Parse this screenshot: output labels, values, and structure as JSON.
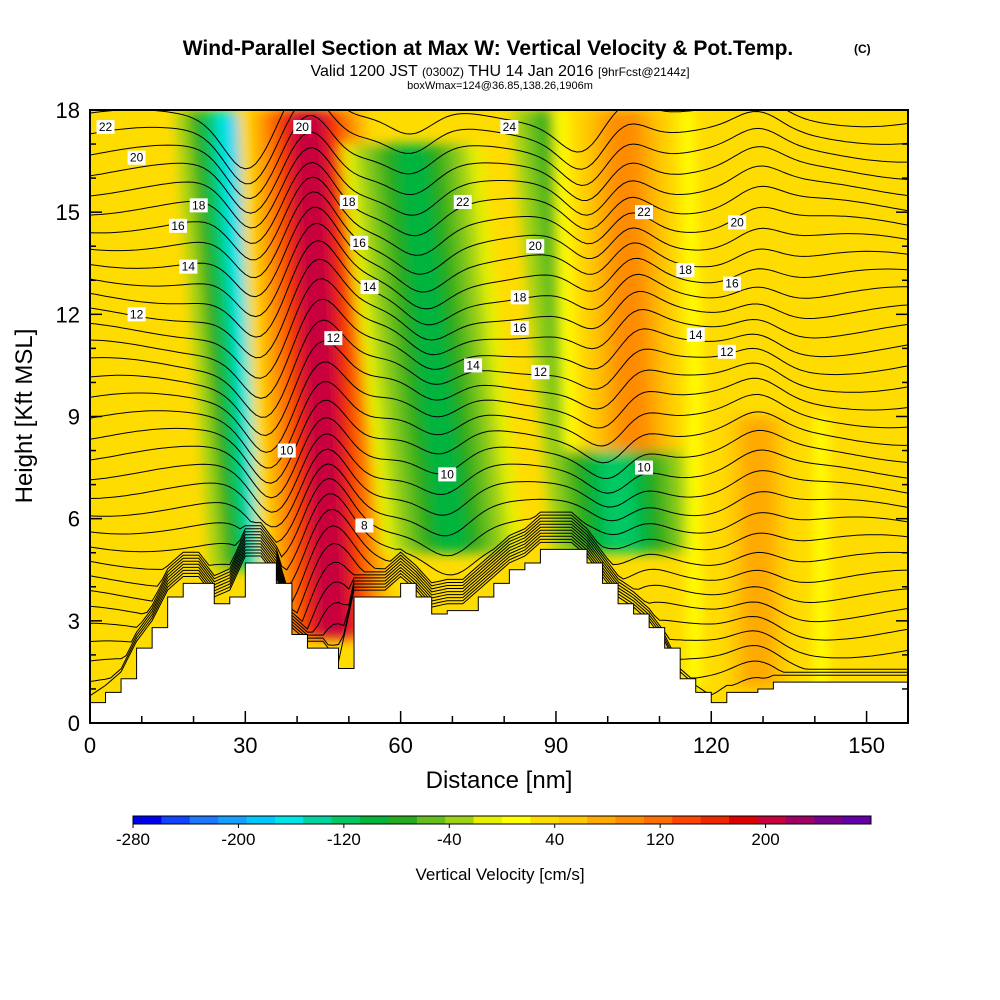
{
  "header": {
    "title": "Wind-Parallel Section at Max W: Vertical Velocity & Pot.Temp.",
    "copyright": "(C)",
    "valid_prefix": "Valid 1200 JST",
    "valid_utc": "(0300Z)",
    "valid_date": "THU 14 Jan 2016",
    "forecast": "[9hrFcst@2144z]",
    "box_info": "boxWmax=124@36.85,138.26,1906m"
  },
  "chart_data": {
    "type": "heatmap",
    "xlabel": "Distance [nm]",
    "ylabel": "Height [Kft MSL]",
    "xlim": [
      0,
      158
    ],
    "ylim": [
      0,
      18
    ],
    "x_ticks": [
      0,
      30,
      60,
      90,
      120,
      150
    ],
    "y_ticks": [
      0,
      3,
      6,
      9,
      12,
      15,
      18
    ],
    "colorbar": {
      "label": "Vertical Velocity [cm/s]",
      "tick_labels": [
        "-280",
        "-200",
        "-120",
        "-40",
        "40",
        "120",
        "200"
      ],
      "tick_values": [
        -280,
        -200,
        -120,
        -40,
        40,
        120,
        200
      ],
      "range": [
        -280,
        280
      ],
      "colors": [
        "#0000ee",
        "#1144ff",
        "#1e78ff",
        "#14a0ff",
        "#00c8ff",
        "#00e6e6",
        "#00d2a0",
        "#00c864",
        "#00b43c",
        "#28aa1e",
        "#64be1e",
        "#a0d214",
        "#e6f000",
        "#ffff00",
        "#ffdc00",
        "#ffc800",
        "#ffaa00",
        "#ff8c00",
        "#ff6e00",
        "#ff4600",
        "#f02800",
        "#dc0000",
        "#c8003c",
        "#a00064",
        "#78008c",
        "#6400aa"
      ]
    },
    "vertical_velocity_features": [
      {
        "kind": "downdraft",
        "x_base": 37,
        "x_top": 30,
        "peak": -190,
        "y_bottom": 4.5,
        "y_top": 18
      },
      {
        "kind": "updraft",
        "x_base": 47,
        "x_top": 42,
        "peak": 210,
        "y_bottom": 2.5,
        "y_top": 18
      },
      {
        "kind": "downdraft",
        "x_base": 70,
        "x_top": 62,
        "peak": -100,
        "y_bottom": 5,
        "y_top": 17
      },
      {
        "kind": "downdraft",
        "x_base": 103,
        "x_top": 95,
        "peak": -120,
        "y_bottom": 5,
        "y_top": 18
      },
      {
        "kind": "updraft",
        "x_base": 105,
        "x_top": 103,
        "peak": 90,
        "y_bottom": 8,
        "y_top": 18
      },
      {
        "kind": "updraft",
        "x_base": 129,
        "x_top": 129,
        "peak": 70,
        "y_bottom": 1,
        "y_top": 9
      }
    ],
    "terrain_height_kft": [
      [
        0,
        0.6
      ],
      [
        3,
        0.9
      ],
      [
        6,
        1.3
      ],
      [
        9,
        2.2
      ],
      [
        12,
        2.8
      ],
      [
        15,
        3.7
      ],
      [
        18,
        4.1
      ],
      [
        21,
        4.1
      ],
      [
        24,
        3.5
      ],
      [
        27,
        3.7
      ],
      [
        30,
        4.7
      ],
      [
        33,
        4.7
      ],
      [
        36,
        4.1
      ],
      [
        39,
        2.6
      ],
      [
        42,
        2.2
      ],
      [
        45,
        2.2
      ],
      [
        48,
        1.6
      ],
      [
        51,
        3.7
      ],
      [
        54,
        3.7
      ],
      [
        57,
        3.7
      ],
      [
        60,
        4.1
      ],
      [
        63,
        3.7
      ],
      [
        66,
        3.2
      ],
      [
        69,
        3.3
      ],
      [
        72,
        3.3
      ],
      [
        75,
        3.7
      ],
      [
        78,
        4.1
      ],
      [
        81,
        4.5
      ],
      [
        84,
        4.7
      ],
      [
        87,
        5.1
      ],
      [
        90,
        5.1
      ],
      [
        93,
        5.1
      ],
      [
        96,
        4.7
      ],
      [
        99,
        4.1
      ],
      [
        102,
        3.5
      ],
      [
        105,
        3.2
      ],
      [
        108,
        2.8
      ],
      [
        111,
        2.2
      ],
      [
        114,
        1.3
      ],
      [
        117,
        0.9
      ],
      [
        120,
        0.6
      ],
      [
        123,
        0.9
      ],
      [
        126,
        0.9
      ],
      [
        129,
        1.0
      ],
      [
        132,
        1.2
      ],
      [
        135,
        1.2
      ],
      [
        138,
        1.2
      ],
      [
        141,
        1.2
      ],
      [
        144,
        1.2
      ],
      [
        147,
        1.2
      ],
      [
        150,
        1.2
      ],
      [
        153,
        1.2
      ],
      [
        156,
        1.2
      ],
      [
        158,
        1.2
      ]
    ],
    "theta_contour_labels": [
      {
        "text": "22",
        "x": 3,
        "y": 17.5
      },
      {
        "text": "20",
        "x": 9,
        "y": 16.6
      },
      {
        "text": "18",
        "x": 21,
        "y": 15.2
      },
      {
        "text": "16",
        "x": 17,
        "y": 14.6
      },
      {
        "text": "14",
        "x": 19,
        "y": 13.4
      },
      {
        "text": "12",
        "x": 9,
        "y": 12.0
      },
      {
        "text": "20",
        "x": 41,
        "y": 17.5
      },
      {
        "text": "18",
        "x": 50,
        "y": 15.3
      },
      {
        "text": "16",
        "x": 52,
        "y": 14.1
      },
      {
        "text": "14",
        "x": 54,
        "y": 12.8
      },
      {
        "text": "12",
        "x": 47,
        "y": 11.3
      },
      {
        "text": "10",
        "x": 38,
        "y": 8.0
      },
      {
        "text": "8",
        "x": 53,
        "y": 5.8
      },
      {
        "text": "24",
        "x": 81,
        "y": 17.5
      },
      {
        "text": "22",
        "x": 72,
        "y": 15.3
      },
      {
        "text": "20",
        "x": 86,
        "y": 14.0
      },
      {
        "text": "18",
        "x": 83,
        "y": 12.5
      },
      {
        "text": "16",
        "x": 83,
        "y": 11.6
      },
      {
        "text": "14",
        "x": 74,
        "y": 10.5
      },
      {
        "text": "12",
        "x": 87,
        "y": 10.3
      },
      {
        "text": "10",
        "x": 69,
        "y": 7.3
      },
      {
        "text": "22",
        "x": 107,
        "y": 15.0
      },
      {
        "text": "20",
        "x": 125,
        "y": 14.7
      },
      {
        "text": "18",
        "x": 115,
        "y": 13.3
      },
      {
        "text": "16",
        "x": 124,
        "y": 12.9
      },
      {
        "text": "14",
        "x": 117,
        "y": 11.4
      },
      {
        "text": "12",
        "x": 123,
        "y": 10.9
      },
      {
        "text": "10",
        "x": 107,
        "y": 7.5
      }
    ]
  }
}
